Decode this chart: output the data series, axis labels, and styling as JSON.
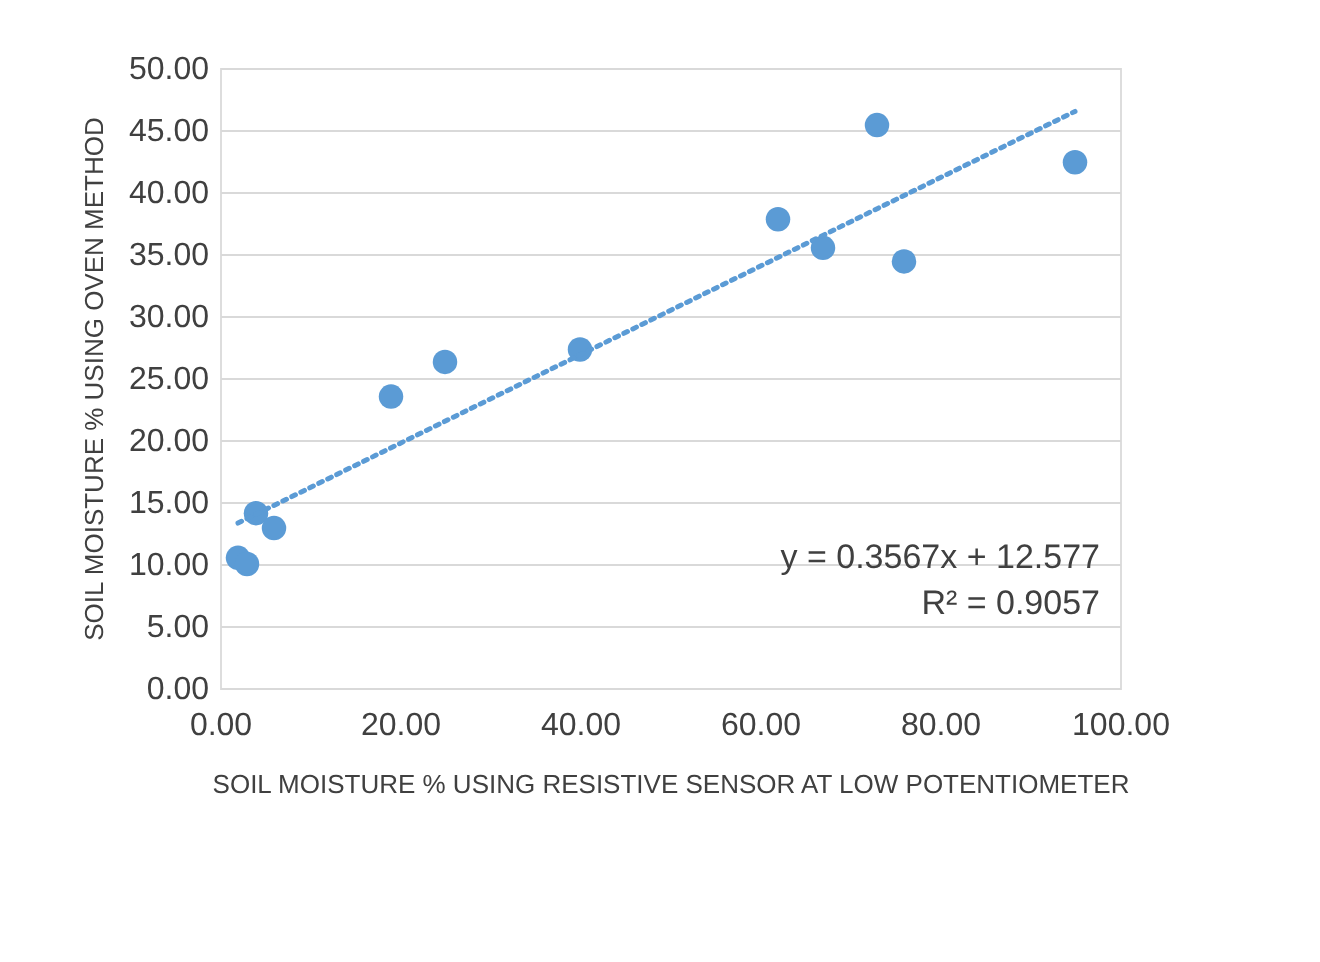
{
  "chart_data": {
    "type": "scatter",
    "xlabel": "SOIL MOISTURE % USING RESISTIVE SENSOR AT LOW POTENTIOMETER",
    "ylabel": "SOIL MOISTURE % USING  OVEN METHOD",
    "x": [
      2,
      3,
      4,
      6,
      19,
      25,
      40,
      62,
      67,
      73,
      76,
      95
    ],
    "series": [
      {
        "color": "#5b9bd5",
        "marker": "circle",
        "values": [
          10.5,
          10.0,
          14.1,
          12.9,
          23.5,
          26.3,
          27.3,
          37.8,
          35.5,
          45.4,
          34.4,
          42.4
        ]
      },
      {
        "type": "line",
        "color": "#5b9bd5",
        "line_style": "dotted",
        "x": [
          2,
          95
        ],
        "values": [
          13.3,
          46.5
        ]
      }
    ],
    "xlim": [
      0,
      100
    ],
    "ylim": [
      0,
      50
    ],
    "xticks": [
      {
        "value": 0,
        "label": "0.00"
      },
      {
        "value": 20,
        "label": "20.00"
      },
      {
        "value": 40,
        "label": "40.00"
      },
      {
        "value": 60,
        "label": "60.00"
      },
      {
        "value": 80,
        "label": "80.00"
      },
      {
        "value": 100,
        "label": "100.00"
      }
    ],
    "yticks": [
      {
        "value": 0,
        "label": "0.00"
      },
      {
        "value": 5,
        "label": "5.00"
      },
      {
        "value": 10,
        "label": "10.00"
      },
      {
        "value": 15,
        "label": "15.00"
      },
      {
        "value": 20,
        "label": "20.00"
      },
      {
        "value": 25,
        "label": "25.00"
      },
      {
        "value": 30,
        "label": "30.00"
      },
      {
        "value": 35,
        "label": "35.00"
      },
      {
        "value": 40,
        "label": "40.00"
      },
      {
        "value": 45,
        "label": "45.00"
      },
      {
        "value": 50,
        "label": "50.00"
      }
    ],
    "annotations": [
      "y = 0.3567x + 12.577",
      "R² = 0.9057"
    ],
    "grid": "y",
    "legend": false
  }
}
